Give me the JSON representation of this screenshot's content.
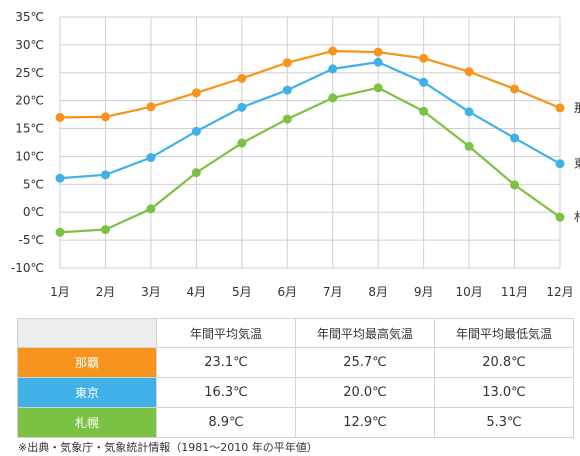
{
  "chart_data": {
    "type": "line",
    "categories": [
      "1月",
      "2月",
      "3月",
      "4月",
      "5月",
      "6月",
      "7月",
      "8月",
      "9月",
      "10月",
      "11月",
      "12月"
    ],
    "ylim": [
      -10,
      35
    ],
    "yticks": [
      "-10℃",
      "-5℃",
      "0℃",
      "5℃",
      "10℃",
      "15℃",
      "20℃",
      "25℃",
      "30℃",
      "35℃"
    ],
    "grid": true,
    "series": [
      {
        "name": "那覇",
        "color": "#f7941d",
        "values": [
          17.0,
          17.1,
          18.9,
          21.4,
          24.0,
          26.8,
          28.9,
          28.7,
          27.6,
          25.2,
          22.1,
          18.7
        ]
      },
      {
        "name": "東京",
        "color": "#3fb0e8",
        "values": [
          6.1,
          6.7,
          9.8,
          14.5,
          18.8,
          21.9,
          25.7,
          26.9,
          23.3,
          18.0,
          13.3,
          8.7
        ]
      },
      {
        "name": "札幌",
        "color": "#7bc143",
        "values": [
          -3.6,
          -3.1,
          0.6,
          7.1,
          12.4,
          16.7,
          20.5,
          22.3,
          18.1,
          11.8,
          4.9,
          -0.9
        ]
      }
    ]
  },
  "table": {
    "headers": [
      "",
      "年間平均気温",
      "年間平均最高気温",
      "年間平均最低気温"
    ],
    "rows": [
      {
        "city": "那覇",
        "color": "#f7941d",
        "avg": "23.1℃",
        "max": "25.7℃",
        "min": "20.8℃"
      },
      {
        "city": "東京",
        "color": "#3fb0e8",
        "avg": "16.3℃",
        "max": "20.0℃",
        "min": "13.0℃"
      },
      {
        "city": "札幌",
        "color": "#7bc143",
        "avg": "8.9℃",
        "max": "12.9℃",
        "min": "5.3℃"
      }
    ]
  },
  "source": "※出典・気象庁・気象統計情報（1981〜2010 年の平年値）"
}
